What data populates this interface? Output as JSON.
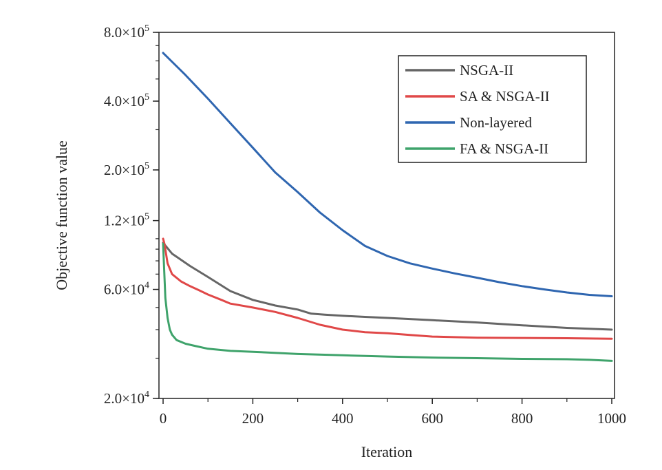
{
  "chart_data": {
    "type": "line",
    "title": "",
    "xlabel": "Iteration",
    "ylabel": "Objective function value",
    "xlim": [
      0,
      1000
    ],
    "ylim": [
      20000,
      800000
    ],
    "yscale": "log",
    "xticks": [
      0,
      200,
      400,
      600,
      800,
      1000
    ],
    "xtick_labels": [
      "0",
      "200",
      "400",
      "600",
      "800",
      "1000"
    ],
    "yticks": [
      20000,
      60000,
      120000,
      200000,
      400000,
      800000
    ],
    "ytick_labels": [
      {
        "mant": "2.0×10",
        "exp": "4"
      },
      {
        "mant": "6.0×10",
        "exp": "4"
      },
      {
        "mant": "1.2×10",
        "exp": "5"
      },
      {
        "mant": "2.0×10",
        "exp": "5"
      },
      {
        "mant": "4.0×10",
        "exp": "5"
      },
      {
        "mant": "8.0×10",
        "exp": "5"
      }
    ],
    "grid": false,
    "legend_position": "top-right",
    "series": [
      {
        "name": "NSGA-II",
        "color": "#666666",
        "x": [
          0,
          20,
          60,
          100,
          150,
          200,
          250,
          300,
          330,
          360,
          400,
          450,
          500,
          600,
          700,
          800,
          900,
          1000
        ],
        "y": [
          96000,
          86000,
          76000,
          68000,
          59000,
          54000,
          51000,
          49000,
          47000,
          46500,
          46000,
          45500,
          45000,
          44000,
          43000,
          41800,
          40700,
          40000
        ]
      },
      {
        "name": "SA & NSGA-II",
        "color": "#e04848",
        "x": [
          0,
          3,
          10,
          20,
          40,
          60,
          80,
          100,
          130,
          150,
          200,
          250,
          300,
          350,
          400,
          450,
          500,
          550,
          600,
          700,
          800,
          900,
          1000
        ],
        "y": [
          100000,
          95000,
          78000,
          70000,
          65000,
          62000,
          59500,
          57000,
          54000,
          52000,
          50000,
          47800,
          45000,
          42000,
          40000,
          39000,
          38600,
          37900,
          37300,
          36900,
          36800,
          36700,
          36500
        ]
      },
      {
        "name": "Non-layered",
        "color": "#2f66b0",
        "x": [
          0,
          50,
          100,
          150,
          200,
          250,
          300,
          350,
          400,
          450,
          500,
          550,
          600,
          650,
          700,
          750,
          800,
          850,
          900,
          950,
          1000
        ],
        "y": [
          650000,
          520000,
          410000,
          320000,
          250000,
          195000,
          160000,
          130000,
          109000,
          93000,
          84000,
          78000,
          74000,
          70500,
          67500,
          64500,
          62000,
          60000,
          58200,
          56800,
          56000
        ]
      },
      {
        "name": "FA & NSGA-II",
        "color": "#3fa36b",
        "x": [
          0,
          5,
          10,
          15,
          20,
          30,
          50,
          70,
          100,
          150,
          200,
          300,
          400,
          500,
          600,
          700,
          800,
          900,
          950,
          1000
        ],
        "y": [
          95000,
          55000,
          45000,
          40000,
          38000,
          36000,
          34700,
          34000,
          33000,
          32300,
          32000,
          31300,
          30900,
          30500,
          30200,
          30000,
          29800,
          29700,
          29500,
          29200
        ]
      }
    ]
  }
}
